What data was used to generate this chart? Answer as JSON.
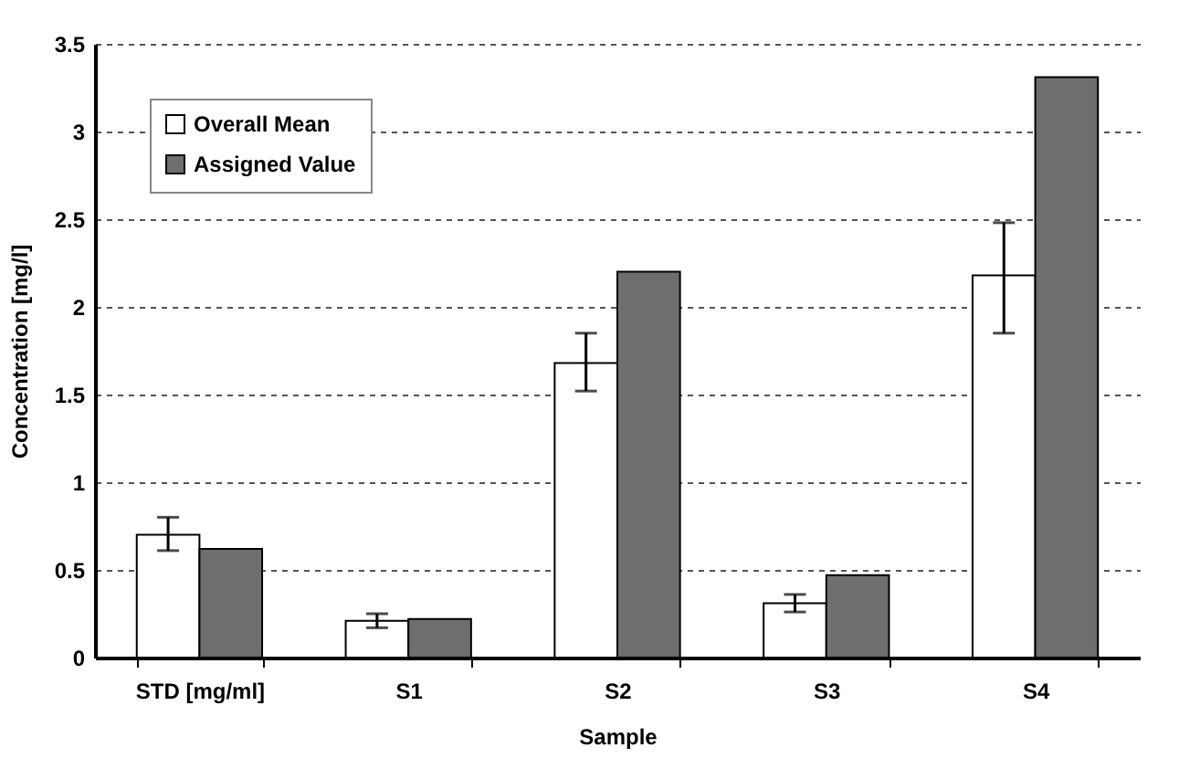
{
  "chart_data": {
    "type": "bar",
    "xlabel": "Sample",
    "ylabel": "Concentration [mg/l]",
    "categories": [
      "STD [mg/ml]",
      "S1",
      "S2",
      "S3",
      "S4"
    ],
    "series": [
      {
        "name": "Overall Mean",
        "color": "#ffffff",
        "values": [
          0.7,
          0.21,
          1.68,
          0.31,
          2.18
        ],
        "errors": [
          [
            0.61,
            0.8
          ],
          [
            0.17,
            0.25
          ],
          [
            1.52,
            1.85
          ],
          [
            0.26,
            0.36
          ],
          [
            1.85,
            2.48
          ]
        ]
      },
      {
        "name": "Assigned Value",
        "color": "#6e6e6e",
        "values": [
          0.62,
          0.22,
          2.2,
          0.47,
          3.31
        ]
      }
    ],
    "ylim": [
      0,
      3.5
    ],
    "yticks": [
      0,
      0.5,
      1,
      1.5,
      2,
      2.5,
      3,
      3.5
    ],
    "grid": "y",
    "legend": "top left"
  }
}
